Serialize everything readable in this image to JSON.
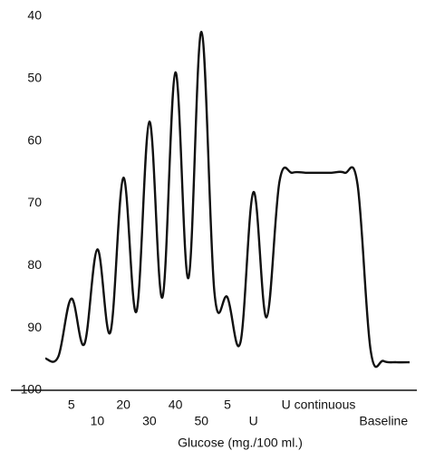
{
  "chart_data": {
    "type": "line",
    "x_label": "Glucose (mg./100 ml.)",
    "categories": [
      null,
      null,
      "5",
      null,
      "10",
      null,
      "20",
      null,
      "30",
      null,
      "40",
      null,
      "50",
      null,
      "5",
      null,
      "U",
      null,
      null,
      null,
      null,
      "U continuous",
      null,
      null,
      null,
      null,
      "Baseline",
      null,
      null
    ],
    "values": [
      94.9,
      94.6,
      85.3,
      92.6,
      77.4,
      90.7,
      65.9,
      87.4,
      56.9,
      85.1,
      49.0,
      82.0,
      42.5,
      84.3,
      85.1,
      92.3,
      68.2,
      88.3,
      66.5,
      65.1,
      65.1,
      65.1,
      65.1,
      65.1,
      67.0,
      93.5,
      95.3,
      95.5,
      95.5
    ],
    "color": "#111111",
    "ylim": [
      100,
      40
    ],
    "yticks": [
      40,
      50,
      60,
      70,
      80,
      90,
      100
    ]
  }
}
